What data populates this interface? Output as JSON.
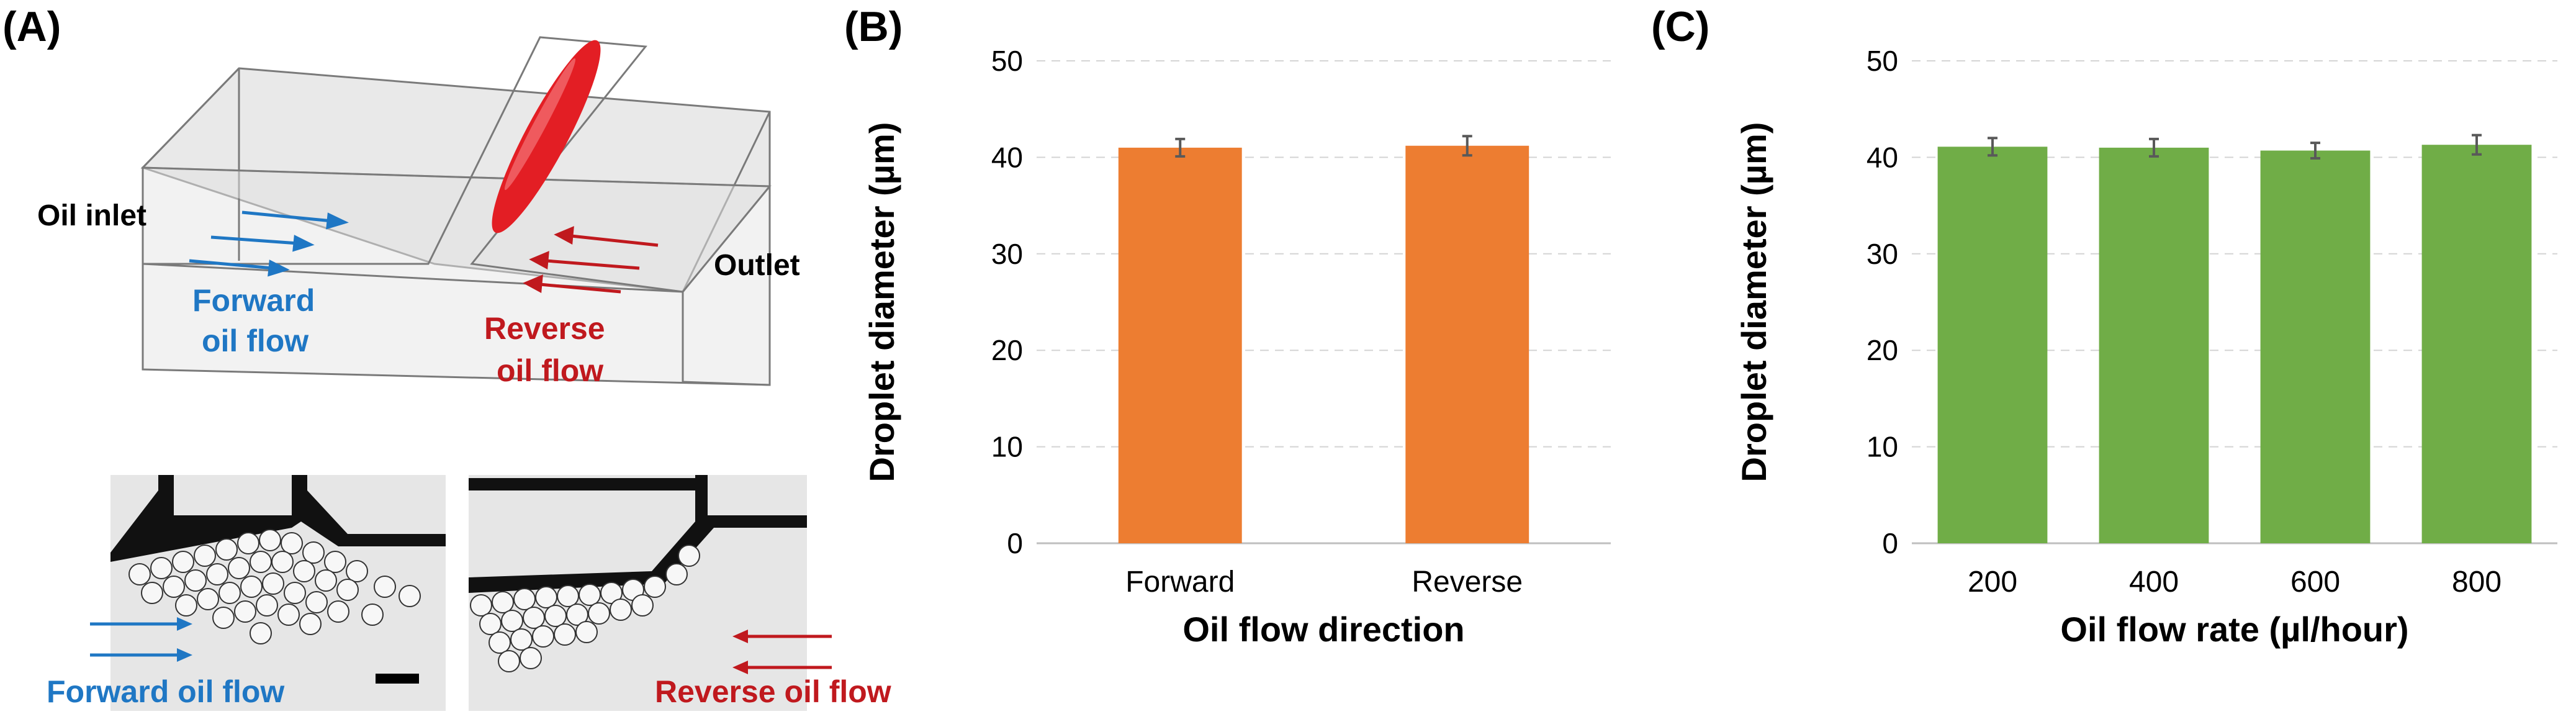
{
  "panels": {
    "a": {
      "label": "(A)",
      "oil_inlet": "Oil inlet",
      "outlet": "Outlet",
      "forward_label_line1": "Forward",
      "forward_label_line2": "oil flow",
      "reverse_label_line1": "Reverse",
      "reverse_label_line2": "oil flow",
      "micro_forward_caption": "Forward oil flow",
      "micro_reverse_caption": "Reverse oil flow",
      "colors": {
        "forward": "#1f77c4",
        "reverse": "#c0191e",
        "droplet": "#e31e24"
      }
    },
    "b": {
      "label": "(B)"
    },
    "c": {
      "label": "(C)"
    }
  },
  "chart_data": [
    {
      "type": "bar",
      "title": "",
      "xlabel": "Oil flow direction",
      "ylabel": "Droplet diameter (µm)",
      "categories": [
        "Forward",
        "Reverse"
      ],
      "values": [
        41.0,
        41.2
      ],
      "errors": [
        0.9,
        1.0
      ],
      "ylim": [
        0,
        50
      ],
      "yticks": [
        0,
        10,
        20,
        30,
        40,
        50
      ],
      "grid": true,
      "color": "#ed7d31"
    },
    {
      "type": "bar",
      "title": "",
      "xlabel": "Oil flow rate (µl/hour)",
      "ylabel": "Droplet diameter (µm)",
      "categories": [
        "200",
        "400",
        "600",
        "800"
      ],
      "values": [
        41.1,
        41.0,
        40.7,
        41.3
      ],
      "errors": [
        0.9,
        0.9,
        0.8,
        1.0
      ],
      "ylim": [
        0,
        50
      ],
      "yticks": [
        0,
        10,
        20,
        30,
        40,
        50
      ],
      "grid": true,
      "color": "#70ad47"
    }
  ]
}
